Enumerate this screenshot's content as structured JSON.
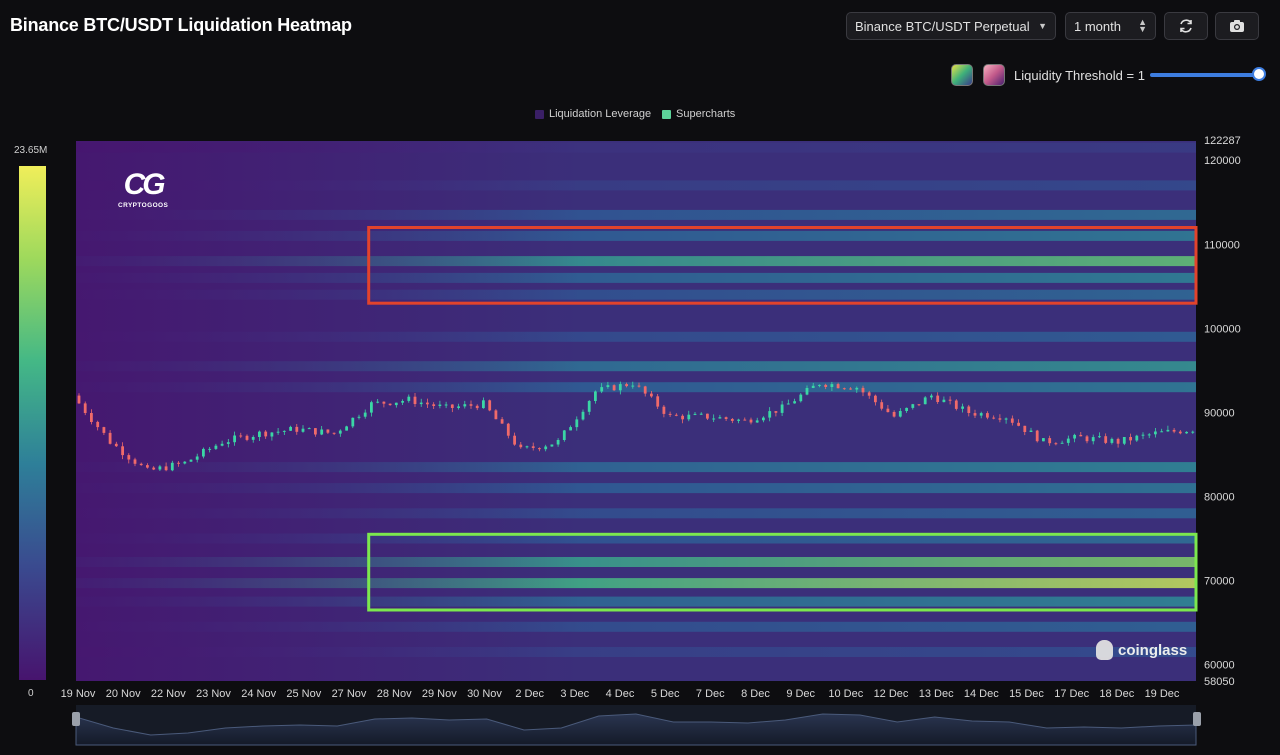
{
  "header": {
    "title": "Binance BTC/USDT Liquidation Heatmap",
    "pair_select": "Binance BTC/USDT Perpetual",
    "range_select": "1 month",
    "refresh_icon": "refresh-icon",
    "camera_icon": "camera-icon"
  },
  "threshold": {
    "label": "Liquidity Threshold = 1",
    "value": 1,
    "slider_fraction": 1.0,
    "palettes": [
      "green-yellow",
      "pink-purple"
    ]
  },
  "watermarks": {
    "brand_logo": "CG",
    "brand_name": "CRYPTOGOOS",
    "site": "coinglass"
  },
  "colors": {
    "low": "#47146e",
    "mid": "#2e7f99",
    "high": "#f0ee5a",
    "box_red": "#e2432c",
    "box_green": "#7ce84e",
    "candle_up": "#3ad6a5",
    "candle_down": "#f06a6a"
  },
  "chart_data": {
    "type": "heatmap",
    "title": "",
    "legend": [
      {
        "name": "Liquidation Leverage",
        "color": "#3a1f66"
      },
      {
        "name": "Supercharts",
        "color": "#5cd39a"
      }
    ],
    "colorbar": {
      "max_label": "23.65M",
      "min_label": "0",
      "max": 23650000,
      "min": 0
    },
    "x_labels": [
      "19 Nov",
      "20 Nov",
      "22 Nov",
      "23 Nov",
      "24 Nov",
      "25 Nov",
      "27 Nov",
      "28 Nov",
      "29 Nov",
      "30 Nov",
      "2 Dec",
      "3 Dec",
      "4 Dec",
      "5 Dec",
      "7 Dec",
      "8 Dec",
      "9 Dec",
      "10 Dec",
      "12 Dec",
      "13 Dec",
      "14 Dec",
      "15 Dec",
      "17 Dec",
      "18 Dec",
      "19 Dec"
    ],
    "x_range": [
      "19 Nov",
      "19 Dec"
    ],
    "y_labels": [
      "122287",
      "120000",
      "110000",
      "100000",
      "90000",
      "80000",
      "70000",
      "60000",
      "58050"
    ],
    "y_range": [
      58050,
      122287
    ],
    "bands": [
      {
        "price": 121500,
        "intensity": 0.2
      },
      {
        "price": 117000,
        "intensity": 0.28
      },
      {
        "price": 113500,
        "intensity": 0.45
      },
      {
        "price": 111000,
        "intensity": 0.5
      },
      {
        "price": 108000,
        "intensity": 0.8
      },
      {
        "price": 106000,
        "intensity": 0.52
      },
      {
        "price": 104000,
        "intensity": 0.42
      },
      {
        "price": 99000,
        "intensity": 0.38
      },
      {
        "price": 95500,
        "intensity": 0.6
      },
      {
        "price": 93000,
        "intensity": 0.5
      },
      {
        "price": 83500,
        "intensity": 0.55
      },
      {
        "price": 81000,
        "intensity": 0.48
      },
      {
        "price": 78000,
        "intensity": 0.4
      },
      {
        "price": 75000,
        "intensity": 0.45
      },
      {
        "price": 72200,
        "intensity": 0.85
      },
      {
        "price": 69700,
        "intensity": 0.95
      },
      {
        "price": 67500,
        "intensity": 0.55
      },
      {
        "price": 64500,
        "intensity": 0.4
      },
      {
        "price": 61500,
        "intensity": 0.3
      }
    ],
    "price_series": {
      "x": [
        "19 Nov",
        "20 Nov",
        "21 Nov",
        "22 Nov",
        "23 Nov",
        "24 Nov",
        "25 Nov",
        "26 Nov",
        "27 Nov",
        "28 Nov",
        "29 Nov",
        "30 Nov",
        "1 Dec",
        "2 Dec",
        "3 Dec",
        "4 Dec",
        "5 Dec",
        "6 Dec",
        "7 Dec",
        "8 Dec",
        "9 Dec",
        "10 Dec",
        "11 Dec",
        "12 Dec",
        "13 Dec",
        "14 Dec",
        "15 Dec",
        "16 Dec",
        "17 Dec",
        "18 Dec",
        "19 Dec"
      ],
      "close": [
        92000,
        86500,
        83000,
        84000,
        86500,
        87500,
        88000,
        87500,
        91000,
        91500,
        90500,
        91000,
        85500,
        86500,
        92500,
        93500,
        89500,
        89500,
        89000,
        90500,
        93500,
        93000,
        89500,
        92000,
        90000,
        89500,
        86500,
        87000,
        86500,
        87500,
        88000
      ]
    },
    "annotations": [
      {
        "kind": "rectangle",
        "color": "#e2432c",
        "x_start": "27 Nov",
        "x_end": "19 Dec",
        "y_low": 103000,
        "y_high": 112000
      },
      {
        "kind": "rectangle",
        "color": "#7ce84e",
        "x_start": "27 Nov",
        "x_end": "19 Dec",
        "y_low": 66500,
        "y_high": 75500
      }
    ]
  }
}
